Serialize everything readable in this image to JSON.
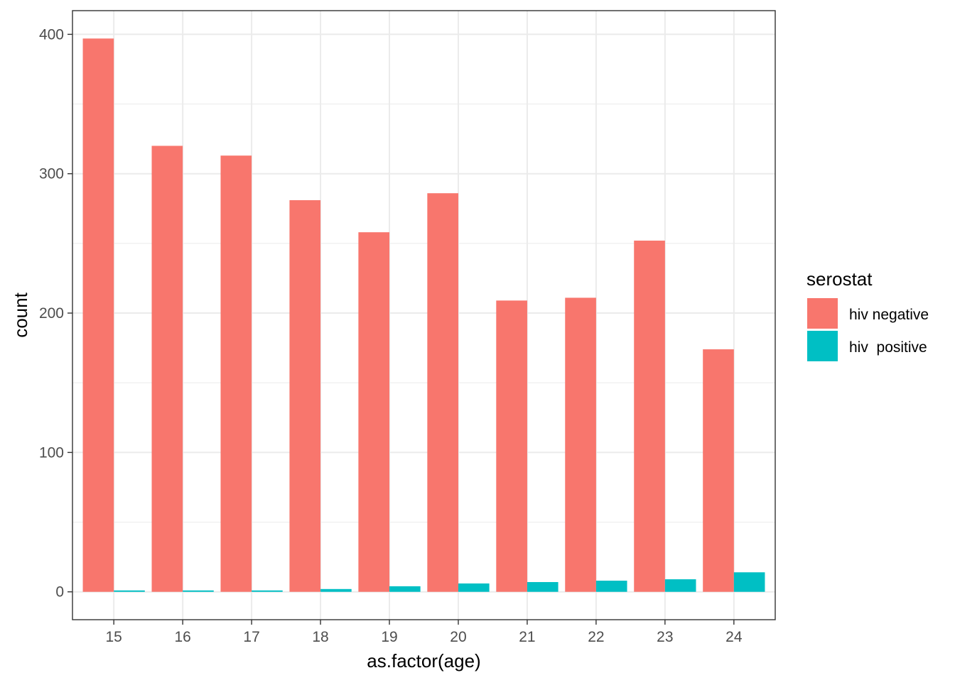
{
  "chart_data": {
    "type": "bar",
    "title": "",
    "xlabel": "as.factor(age)",
    "ylabel": "count",
    "categories": [
      "15",
      "16",
      "17",
      "18",
      "19",
      "20",
      "21",
      "22",
      "23",
      "24"
    ],
    "series": [
      {
        "name": "hiv negative",
        "color": "#F8766D",
        "values": [
          397,
          320,
          313,
          281,
          258,
          286,
          209,
          211,
          252,
          174
        ]
      },
      {
        "name": "hiv  positive",
        "color": "#00BFC4",
        "values": [
          1,
          1,
          1,
          2,
          4,
          6,
          7,
          8,
          9,
          14
        ]
      }
    ],
    "ylim": [
      -20,
      417
    ],
    "yticks": [
      0,
      100,
      200,
      300,
      400
    ],
    "legend": {
      "title": "serostat",
      "position": "right"
    },
    "grid": true
  }
}
